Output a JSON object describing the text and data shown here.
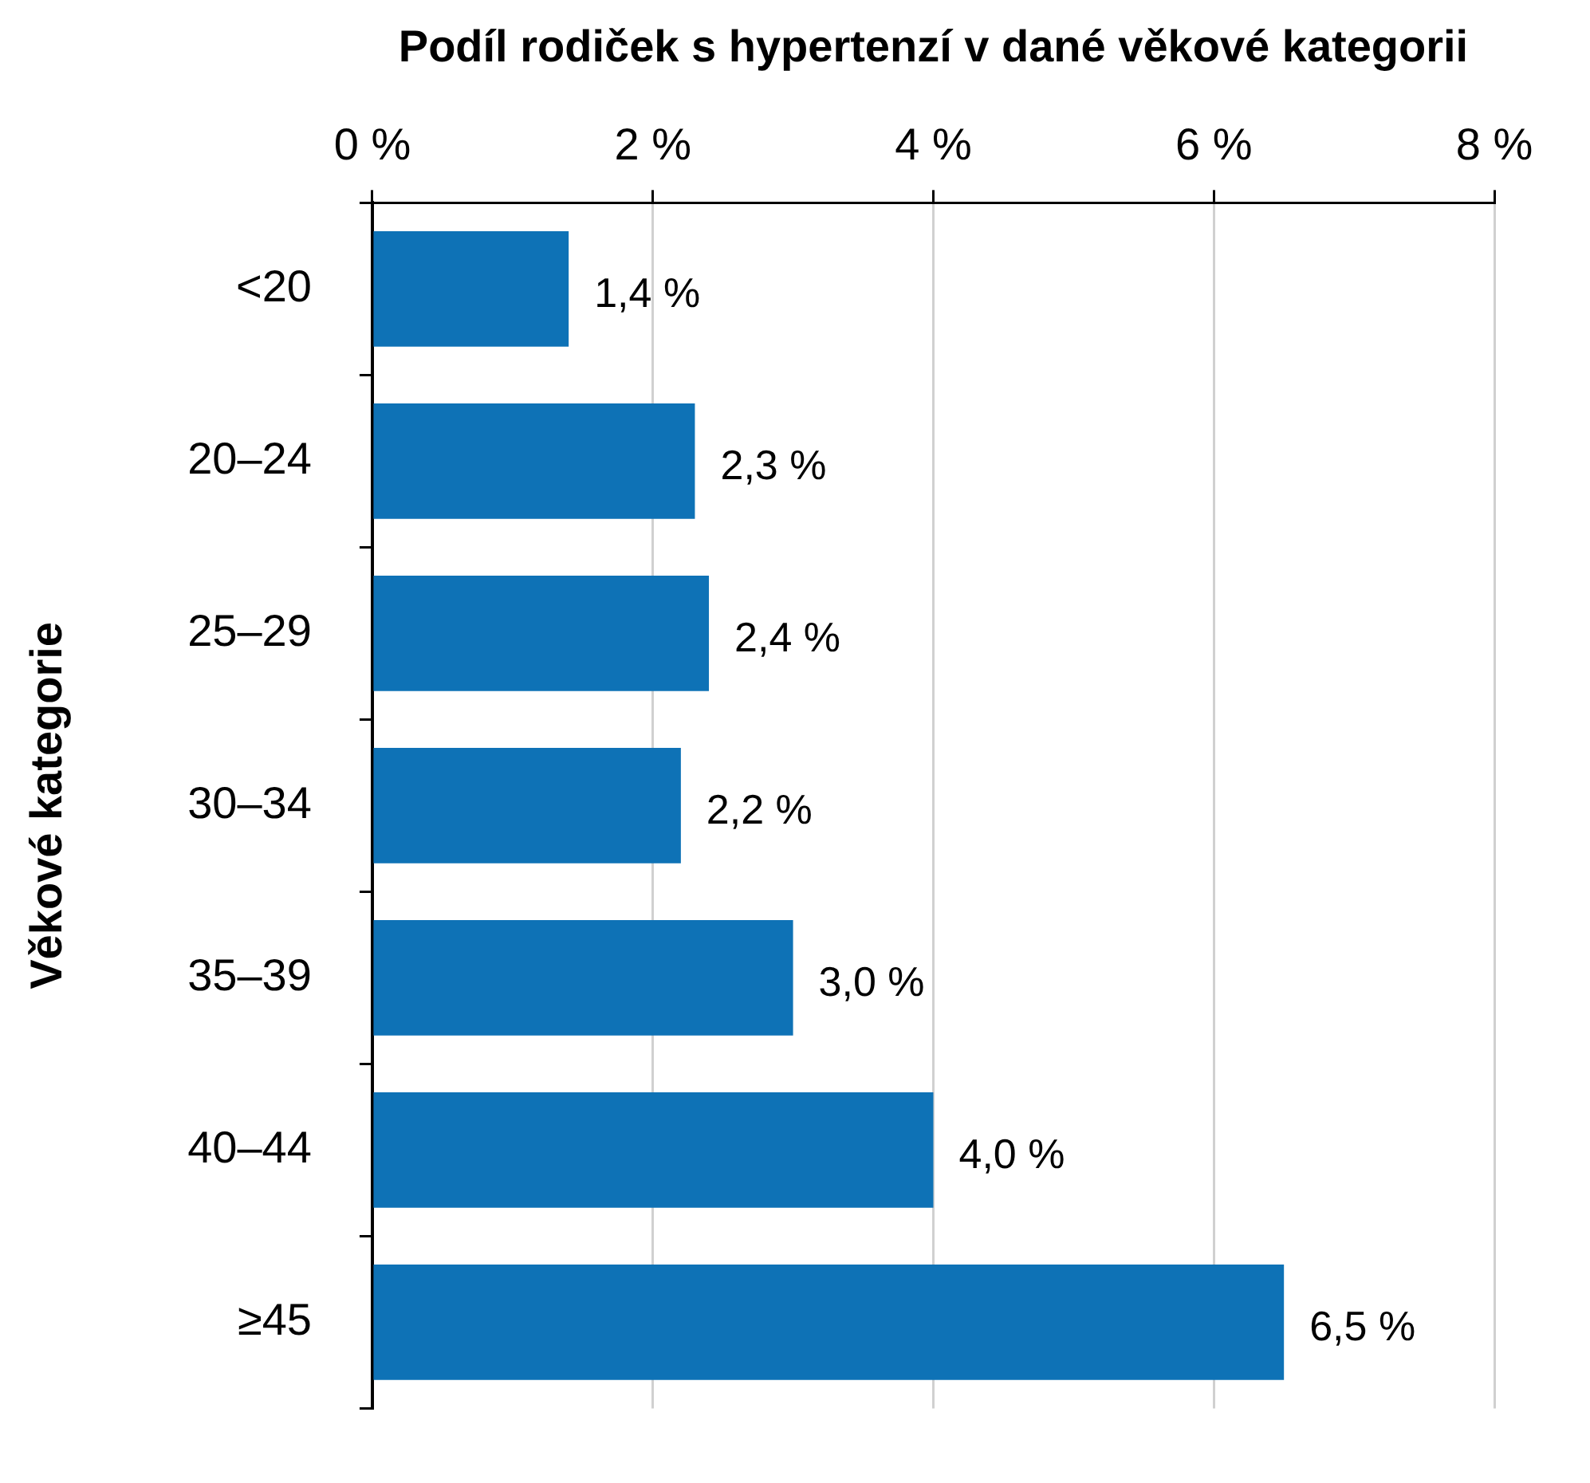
{
  "chart_data": {
    "type": "bar",
    "orientation": "horizontal",
    "xlabel": "Podíl rodiček s hypertenzí v dané věkové kategorii",
    "ylabel": "Věkové kategorie",
    "categories": [
      "<20",
      "20–24",
      "25–29",
      "30–34",
      "35–39",
      "40–44",
      "≥45"
    ],
    "values": [
      1.4,
      2.3,
      2.4,
      2.2,
      3.0,
      4.0,
      6.5
    ],
    "value_labels": [
      "1,4 %",
      "2,3 %",
      "2,4 %",
      "2,2 %",
      "3,0 %",
      "4,0 %",
      "6,5 %"
    ],
    "color": "#0e72b6",
    "xlim": [
      0,
      8
    ],
    "xticks": [
      {
        "value": 0,
        "label": "0 %"
      },
      {
        "value": 2,
        "label": "2 %"
      },
      {
        "value": 4,
        "label": "4 %"
      },
      {
        "value": 6,
        "label": "6 %"
      },
      {
        "value": 8,
        "label": "8 %"
      }
    ],
    "grid": "x",
    "legend": false
  }
}
